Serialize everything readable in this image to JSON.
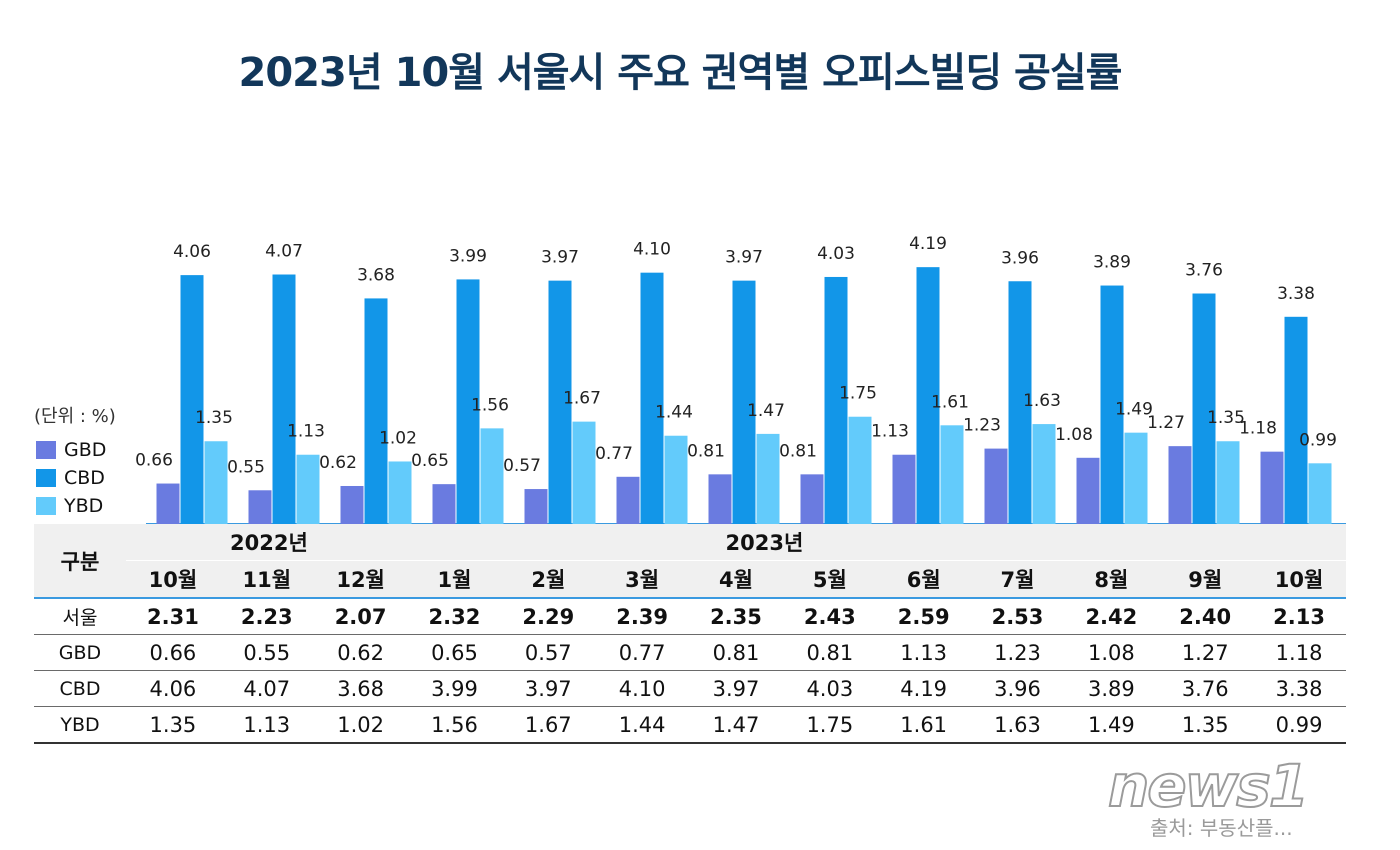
{
  "title": "2023년 10월 서울시 주요 권역별 오피스빌딩 공실률",
  "unit_label": "(단위 : %)",
  "colors": {
    "GBD": "#6a7be0",
    "CBD": "#1296e8",
    "YBD": "#63cbfb",
    "title": "#12375a"
  },
  "chart_data": {
    "type": "bar",
    "title": "2023년 10월 서울시 주요 권역별 오피스빌딩 공실률",
    "categories": [
      "10월",
      "11월",
      "12월",
      "1월",
      "2월",
      "3월",
      "4월",
      "5월",
      "6월",
      "7월",
      "8월",
      "9월",
      "10월"
    ],
    "year_groups": [
      {
        "label": "2022년",
        "months": [
          "10월",
          "11월",
          "12월"
        ]
      },
      {
        "label": "2023년",
        "months": [
          "1월",
          "2월",
          "3월",
          "4월",
          "5월",
          "6월",
          "7월",
          "8월",
          "9월",
          "10월"
        ]
      }
    ],
    "series": [
      {
        "name": "GBD",
        "values": [
          "0.66",
          "0.55",
          "0.62",
          "0.65",
          "0.57",
          "0.77",
          "0.81",
          "0.81",
          "1.13",
          "1.23",
          "1.08",
          "1.27",
          "1.18"
        ]
      },
      {
        "name": "CBD",
        "values": [
          "4.06",
          "4.07",
          "3.68",
          "3.99",
          "3.97",
          "4.10",
          "3.97",
          "4.03",
          "4.19",
          "3.96",
          "3.89",
          "3.76",
          "3.38"
        ]
      },
      {
        "name": "YBD",
        "values": [
          "1.35",
          "1.13",
          "1.02",
          "1.56",
          "1.67",
          "1.44",
          "1.47",
          "1.75",
          "1.61",
          "1.63",
          "1.49",
          "1.35",
          "0.99"
        ]
      }
    ],
    "ylim": [
      0,
      4.5
    ],
    "legend": "left"
  },
  "table": {
    "header_label": "구분",
    "year_2022": "2022년",
    "year_2023": "2023년",
    "rows": [
      {
        "label": "서울",
        "values": [
          "2.31",
          "2.23",
          "2.07",
          "2.32",
          "2.29",
          "2.39",
          "2.35",
          "2.43",
          "2.59",
          "2.53",
          "2.42",
          "2.40",
          "2.13"
        ]
      },
      {
        "label": "GBD",
        "values": [
          "0.66",
          "0.55",
          "0.62",
          "0.65",
          "0.57",
          "0.77",
          "0.81",
          "0.81",
          "1.13",
          "1.23",
          "1.08",
          "1.27",
          "1.18"
        ]
      },
      {
        "label": "CBD",
        "values": [
          "4.06",
          "4.07",
          "3.68",
          "3.99",
          "3.97",
          "4.10",
          "3.97",
          "4.03",
          "4.19",
          "3.96",
          "3.89",
          "3.76",
          "3.38"
        ]
      },
      {
        "label": "YBD",
        "values": [
          "1.35",
          "1.13",
          "1.02",
          "1.56",
          "1.67",
          "1.44",
          "1.47",
          "1.75",
          "1.61",
          "1.63",
          "1.49",
          "1.35",
          "0.99"
        ]
      }
    ]
  },
  "footer": {
    "logo": "news1",
    "source": "출처: 부동산플..."
  }
}
